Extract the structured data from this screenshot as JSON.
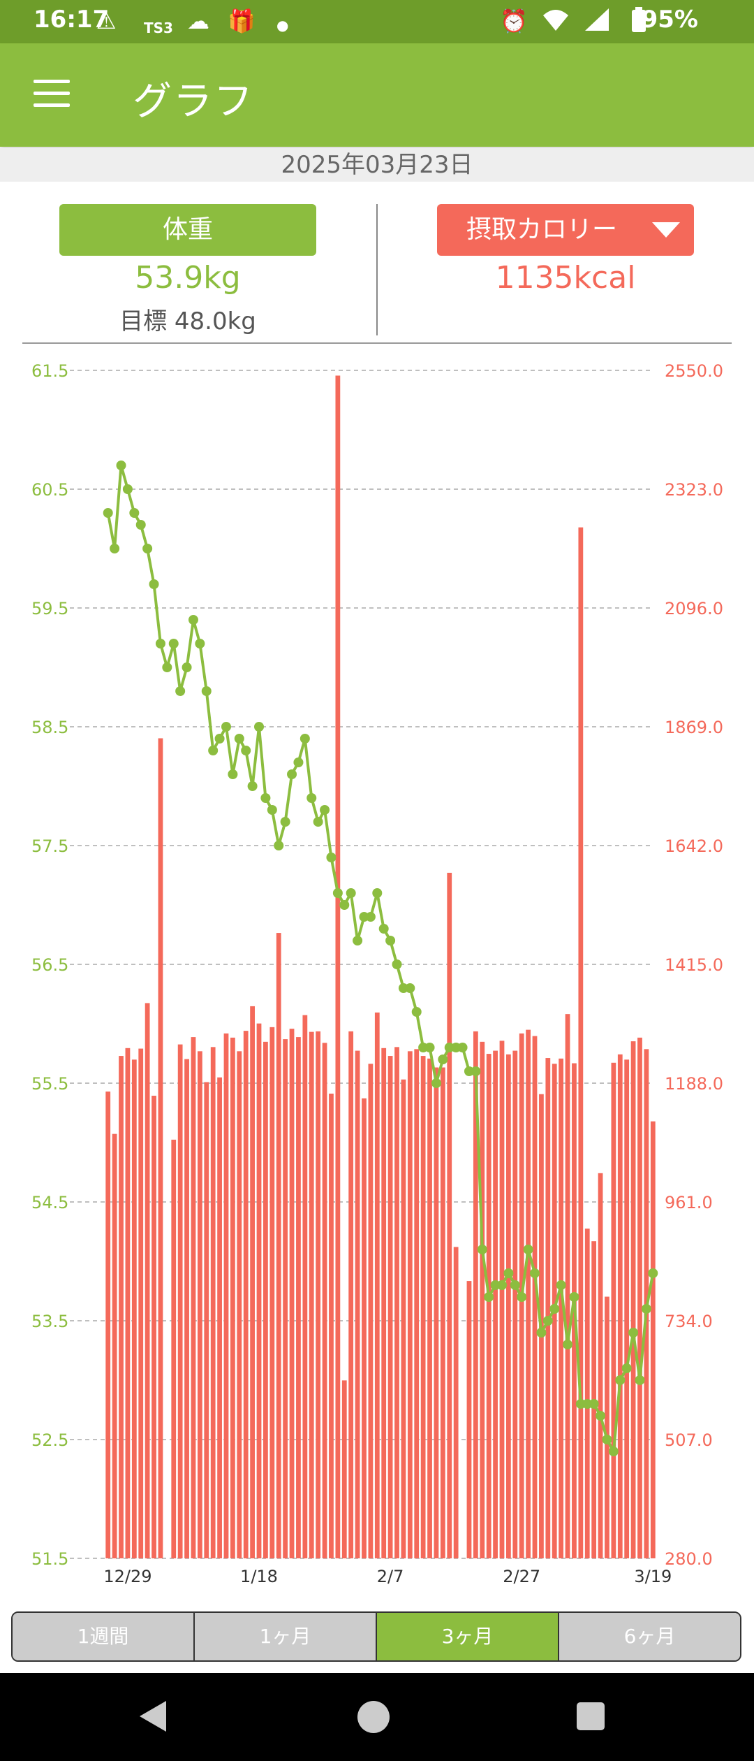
{
  "status_bar": {
    "time": "16:17",
    "battery_percent": "95%",
    "icons": [
      "warning-icon",
      "ts3-icon",
      "app-icon",
      "gift-icon",
      "dot-icon",
      "alarm-icon",
      "wifi-icon",
      "signal-icon",
      "battery-icon"
    ]
  },
  "app_bar": {
    "title": "グラフ"
  },
  "date": "2025年03月23日",
  "summary": {
    "weight_label": "体重",
    "weight_value": "53.9kg",
    "weight_goal": "目標 48.0kg",
    "calorie_label": "摂取カロリー",
    "calorie_value": "1135kcal"
  },
  "colors": {
    "green": "#8cbd3f",
    "red": "#f4695a"
  },
  "tabs": [
    {
      "label": "1週間",
      "active": false
    },
    {
      "label": "1ヶ月",
      "active": false
    },
    {
      "label": "3ヶ月",
      "active": true
    },
    {
      "label": "6ヶ月",
      "active": false
    }
  ],
  "chart_data": {
    "type": "bar+line",
    "x_tick_labels": [
      "12/29",
      "1/18",
      "2/7",
      "2/27",
      "3/19"
    ],
    "x_tick_indices": [
      3,
      23,
      43,
      63,
      83
    ],
    "y_left": {
      "ticks": [
        "61.5",
        "60.5",
        "59.5",
        "58.5",
        "57.5",
        "56.5",
        "55.5",
        "54.5",
        "53.5",
        "52.5",
        "51.5"
      ],
      "range": [
        51.5,
        61.5
      ]
    },
    "y_right": {
      "ticks": [
        "2550.0",
        "2323.0",
        "2096.0",
        "1869.0",
        "1642.0",
        "1415.0",
        "1188.0",
        "961.0",
        "734.0",
        "507.0",
        "280.0"
      ],
      "range": [
        280.0,
        2550.0
      ]
    },
    "grid": true,
    "calories": [
      1172,
      1091,
      1240,
      1255,
      1233,
      1254,
      1341,
      1164,
      1847,
      0,
      1080,
      1262,
      1234,
      1276,
      1249,
      1190,
      1257,
      1199,
      1283,
      1275,
      1249,
      1288,
      1335,
      1302,
      1267,
      1295,
      1475,
      1272,
      1292,
      1276,
      1318,
      1286,
      1287,
      1265,
      1168,
      2540,
      620,
      1287,
      1250,
      1159,
      1225,
      1323,
      1255,
      1240,
      1257,
      1195,
      1249,
      1253,
      1240,
      1235,
      1218,
      1218,
      1590,
      875,
      0,
      810,
      1287,
      1267,
      1244,
      1250,
      1269,
      1243,
      1250,
      1283,
      1290,
      1278,
      1167,
      1236,
      1225,
      1235,
      1320,
      1226,
      2250,
      910,
      886,
      1016,
      780,
      1227,
      1243,
      1233,
      1268,
      1275,
      1253,
      1115
    ],
    "weights": [
      60.3,
      60.0,
      60.7,
      60.5,
      60.3,
      60.2,
      60.0,
      59.7,
      59.2,
      59.0,
      59.2,
      58.8,
      59.0,
      59.4,
      59.2,
      58.8,
      58.3,
      58.4,
      58.5,
      58.1,
      58.4,
      58.3,
      58.0,
      58.5,
      57.9,
      57.8,
      57.5,
      57.7,
      58.1,
      58.2,
      58.4,
      57.9,
      57.7,
      57.8,
      57.4,
      57.1,
      57.0,
      57.1,
      56.7,
      56.9,
      56.9,
      57.1,
      56.8,
      56.7,
      56.5,
      56.3,
      56.3,
      56.1,
      55.8,
      55.8,
      55.5,
      55.7,
      55.8,
      55.8,
      55.8,
      55.6,
      55.6,
      54.1,
      53.7,
      53.8,
      53.8,
      53.9,
      53.8,
      53.7,
      54.1,
      53.9,
      53.4,
      53.5,
      53.6,
      53.8,
      53.3,
      53.7,
      52.8,
      52.8,
      52.8,
      52.7,
      52.5,
      52.4,
      53.0,
      53.1,
      53.4,
      53.0,
      53.6,
      53.9
    ]
  }
}
